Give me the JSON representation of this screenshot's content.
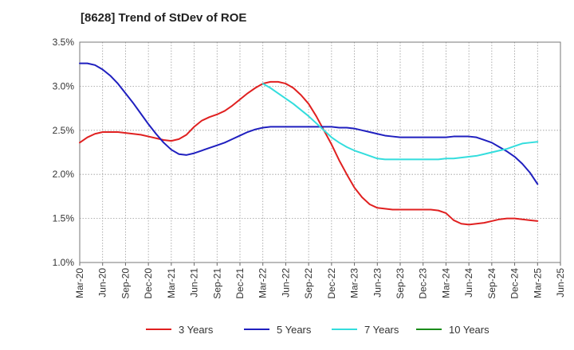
{
  "chart_data": {
    "type": "line",
    "title": "[8628]  Trend of StDev of ROE",
    "xlabel": "",
    "ylabel": "",
    "x_tick_labels": [
      "Mar-20",
      "Jun-20",
      "Sep-20",
      "Dec-20",
      "Mar-21",
      "Jun-21",
      "Sep-21",
      "Dec-21",
      "Mar-22",
      "Jun-22",
      "Sep-22",
      "Dec-22",
      "Mar-23",
      "Jun-23",
      "Sep-23",
      "Dec-23",
      "Mar-24",
      "Jun-24",
      "Sep-24",
      "Dec-24",
      "Mar-25",
      "Jun-25"
    ],
    "y_tick_labels": [
      "1.0%",
      "1.5%",
      "2.0%",
      "2.5%",
      "3.0%",
      "3.5%"
    ],
    "y_ticks": [
      1.0,
      1.5,
      2.0,
      2.5,
      3.0,
      3.5
    ],
    "ylim": [
      1.0,
      3.5
    ],
    "xlim": [
      "Mar-20",
      "Jun-25"
    ],
    "grid": "dotted, both axes",
    "legend_position": "bottom",
    "series": [
      {
        "name": "3 Years",
        "color": "#e02020",
        "points": [
          [
            "Mar-20",
            2.36
          ],
          [
            "Apr-20",
            2.42
          ],
          [
            "May-20",
            2.46
          ],
          [
            "Jun-20",
            2.48
          ],
          [
            "Jul-20",
            2.48
          ],
          [
            "Aug-20",
            2.48
          ],
          [
            "Sep-20",
            2.47
          ],
          [
            "Oct-20",
            2.46
          ],
          [
            "Nov-20",
            2.45
          ],
          [
            "Dec-20",
            2.43
          ],
          [
            "Jan-21",
            2.41
          ],
          [
            "Feb-21",
            2.39
          ],
          [
            "Mar-21",
            2.38
          ],
          [
            "Apr-21",
            2.4
          ],
          [
            "May-21",
            2.45
          ],
          [
            "Jun-21",
            2.54
          ],
          [
            "Jul-21",
            2.61
          ],
          [
            "Aug-21",
            2.65
          ],
          [
            "Sep-21",
            2.68
          ],
          [
            "Oct-21",
            2.72
          ],
          [
            "Nov-21",
            2.78
          ],
          [
            "Dec-21",
            2.85
          ],
          [
            "Jan-22",
            2.92
          ],
          [
            "Feb-22",
            2.98
          ],
          [
            "Mar-22",
            3.03
          ],
          [
            "Apr-22",
            3.05
          ],
          [
            "May-22",
            3.05
          ],
          [
            "Jun-22",
            3.03
          ],
          [
            "Jul-22",
            2.98
          ],
          [
            "Aug-22",
            2.9
          ],
          [
            "Sep-22",
            2.8
          ],
          [
            "Oct-22",
            2.66
          ],
          [
            "Nov-22",
            2.5
          ],
          [
            "Dec-22",
            2.34
          ],
          [
            "Jan-23",
            2.16
          ],
          [
            "Feb-23",
            2.0
          ],
          [
            "Mar-23",
            1.85
          ],
          [
            "Apr-23",
            1.74
          ],
          [
            "May-23",
            1.66
          ],
          [
            "Jun-23",
            1.62
          ],
          [
            "Jul-23",
            1.61
          ],
          [
            "Aug-23",
            1.6
          ],
          [
            "Sep-23",
            1.6
          ],
          [
            "Oct-23",
            1.6
          ],
          [
            "Nov-23",
            1.6
          ],
          [
            "Dec-23",
            1.6
          ],
          [
            "Jan-24",
            1.6
          ],
          [
            "Feb-24",
            1.59
          ],
          [
            "Mar-24",
            1.56
          ],
          [
            "Apr-24",
            1.48
          ],
          [
            "May-24",
            1.44
          ],
          [
            "Jun-24",
            1.43
          ],
          [
            "Jul-24",
            1.44
          ],
          [
            "Aug-24",
            1.45
          ],
          [
            "Sep-24",
            1.47
          ],
          [
            "Oct-24",
            1.49
          ],
          [
            "Nov-24",
            1.5
          ],
          [
            "Dec-24",
            1.5
          ],
          [
            "Jan-25",
            1.49
          ],
          [
            "Feb-25",
            1.48
          ],
          [
            "Mar-25",
            1.47
          ]
        ]
      },
      {
        "name": "5 Years",
        "color": "#1f1fbf",
        "points": [
          [
            "Mar-20",
            3.26
          ],
          [
            "Apr-20",
            3.26
          ],
          [
            "May-20",
            3.24
          ],
          [
            "Jun-20",
            3.19
          ],
          [
            "Jul-20",
            3.12
          ],
          [
            "Aug-20",
            3.03
          ],
          [
            "Sep-20",
            2.92
          ],
          [
            "Oct-20",
            2.81
          ],
          [
            "Nov-20",
            2.69
          ],
          [
            "Dec-20",
            2.57
          ],
          [
            "Jan-21",
            2.46
          ],
          [
            "Feb-21",
            2.36
          ],
          [
            "Mar-21",
            2.28
          ],
          [
            "Apr-21",
            2.23
          ],
          [
            "May-21",
            2.22
          ],
          [
            "Jun-21",
            2.24
          ],
          [
            "Jul-21",
            2.27
          ],
          [
            "Aug-21",
            2.3
          ],
          [
            "Sep-21",
            2.33
          ],
          [
            "Oct-21",
            2.36
          ],
          [
            "Nov-21",
            2.4
          ],
          [
            "Dec-21",
            2.44
          ],
          [
            "Jan-22",
            2.48
          ],
          [
            "Feb-22",
            2.51
          ],
          [
            "Mar-22",
            2.53
          ],
          [
            "Apr-22",
            2.54
          ],
          [
            "May-22",
            2.54
          ],
          [
            "Jun-22",
            2.54
          ],
          [
            "Jul-22",
            2.54
          ],
          [
            "Aug-22",
            2.54
          ],
          [
            "Sep-22",
            2.54
          ],
          [
            "Oct-22",
            2.54
          ],
          [
            "Nov-22",
            2.54
          ],
          [
            "Dec-22",
            2.54
          ],
          [
            "Jan-23",
            2.53
          ],
          [
            "Feb-23",
            2.53
          ],
          [
            "Mar-23",
            2.52
          ],
          [
            "Apr-23",
            2.5
          ],
          [
            "May-23",
            2.48
          ],
          [
            "Jun-23",
            2.46
          ],
          [
            "Jul-23",
            2.44
          ],
          [
            "Aug-23",
            2.43
          ],
          [
            "Sep-23",
            2.42
          ],
          [
            "Oct-23",
            2.42
          ],
          [
            "Nov-23",
            2.42
          ],
          [
            "Dec-23",
            2.42
          ],
          [
            "Jan-24",
            2.42
          ],
          [
            "Feb-24",
            2.42
          ],
          [
            "Mar-24",
            2.42
          ],
          [
            "Apr-24",
            2.43
          ],
          [
            "May-24",
            2.43
          ],
          [
            "Jun-24",
            2.43
          ],
          [
            "Jul-24",
            2.42
          ],
          [
            "Aug-24",
            2.39
          ],
          [
            "Sep-24",
            2.36
          ],
          [
            "Oct-24",
            2.31
          ],
          [
            "Nov-24",
            2.26
          ],
          [
            "Dec-24",
            2.2
          ],
          [
            "Jan-25",
            2.12
          ],
          [
            "Feb-25",
            2.02
          ],
          [
            "Mar-25",
            1.89
          ]
        ]
      },
      {
        "name": "7 Years",
        "color": "#33dddd",
        "points": [
          [
            "Mar-22",
            3.03
          ],
          [
            "Apr-22",
            2.98
          ],
          [
            "May-22",
            2.92
          ],
          [
            "Jun-22",
            2.86
          ],
          [
            "Jul-22",
            2.8
          ],
          [
            "Aug-22",
            2.73
          ],
          [
            "Sep-22",
            2.66
          ],
          [
            "Oct-22",
            2.58
          ],
          [
            "Nov-22",
            2.5
          ],
          [
            "Dec-22",
            2.42
          ],
          [
            "Jan-23",
            2.36
          ],
          [
            "Feb-23",
            2.31
          ],
          [
            "Mar-23",
            2.27
          ],
          [
            "Apr-23",
            2.24
          ],
          [
            "May-23",
            2.21
          ],
          [
            "Jun-23",
            2.18
          ],
          [
            "Jul-23",
            2.17
          ],
          [
            "Aug-23",
            2.17
          ],
          [
            "Sep-23",
            2.17
          ],
          [
            "Oct-23",
            2.17
          ],
          [
            "Nov-23",
            2.17
          ],
          [
            "Dec-23",
            2.17
          ],
          [
            "Jan-24",
            2.17
          ],
          [
            "Feb-24",
            2.17
          ],
          [
            "Mar-24",
            2.18
          ],
          [
            "Apr-24",
            2.18
          ],
          [
            "May-24",
            2.19
          ],
          [
            "Jun-24",
            2.2
          ],
          [
            "Jul-24",
            2.21
          ],
          [
            "Aug-24",
            2.23
          ],
          [
            "Sep-24",
            2.25
          ],
          [
            "Oct-24",
            2.27
          ],
          [
            "Nov-24",
            2.29
          ],
          [
            "Dec-24",
            2.32
          ],
          [
            "Jan-25",
            2.35
          ],
          [
            "Feb-25",
            2.36
          ],
          [
            "Mar-25",
            2.37
          ]
        ]
      },
      {
        "name": "10 Years",
        "color": "#1a8c1a",
        "points": []
      }
    ]
  }
}
